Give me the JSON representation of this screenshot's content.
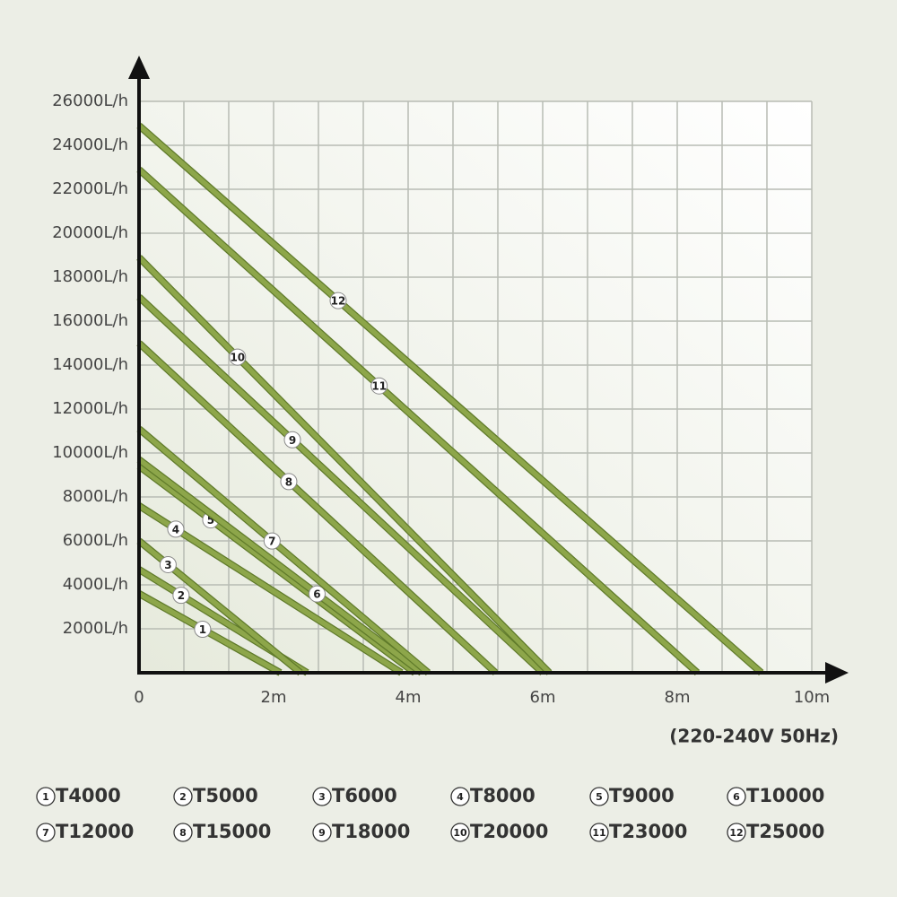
{
  "chart_data": {
    "type": "line",
    "subtitle": "(220-240V  50Hz)",
    "xlim": [
      0,
      10
    ],
    "xticks": [
      0,
      {
        "value": 2,
        "label": "2m"
      },
      {
        "value": 4,
        "label": "4m"
      },
      {
        "value": 6,
        "label": "6m"
      },
      {
        "value": 8,
        "label": "8m"
      },
      {
        "value": 10,
        "label": "10m"
      }
    ],
    "ylim": [
      0,
      26000
    ],
    "yticks": [
      {
        "value": 2000,
        "label": "2000L/h"
      },
      {
        "value": 4000,
        "label": "4000L/h"
      },
      {
        "value": 6000,
        "label": "6000L/h"
      },
      {
        "value": 8000,
        "label": "8000L/h"
      },
      {
        "value": 10000,
        "label": "10000L/h"
      },
      {
        "value": 12000,
        "label": "12000L/h"
      },
      {
        "value": 14000,
        "label": "14000L/h"
      },
      {
        "value": 16000,
        "label": "16000L/h"
      },
      {
        "value": 18000,
        "label": "18000L/h"
      },
      {
        "value": 20000,
        "label": "20000L/h"
      },
      {
        "value": 22000,
        "label": "22000L/h"
      },
      {
        "value": 24000,
        "label": "24000L/h"
      },
      {
        "value": 26000,
        "label": "26000L/h"
      }
    ],
    "grid": true,
    "series": [
      {
        "label": "1",
        "name": "T4000",
        "color": "#8da64a",
        "x": [
          0,
          2.1
        ],
        "values": [
          3600,
          0
        ]
      },
      {
        "label": "2",
        "name": "T5000",
        "color": "#8da64a",
        "x": [
          0,
          2.5
        ],
        "values": [
          4700,
          0
        ]
      },
      {
        "label": "3",
        "name": "T6000",
        "color": "#8da64a",
        "x": [
          0,
          2.4
        ],
        "values": [
          6000,
          0
        ]
      },
      {
        "label": "4",
        "name": "T8000",
        "color": "#8da64a",
        "x": [
          0,
          3.9
        ],
        "values": [
          7600,
          0
        ]
      },
      {
        "label": "5",
        "name": "T9000",
        "color": "#8da64a",
        "x": [
          0,
          4.1
        ],
        "values": [
          9400,
          0
        ]
      },
      {
        "label": "6",
        "name": "T10000",
        "color": "#8da64a",
        "x": [
          0,
          4.2
        ],
        "values": [
          9700,
          0
        ]
      },
      {
        "label": "7",
        "name": "T12000",
        "color": "#8da64a",
        "x": [
          0,
          4.3
        ],
        "values": [
          11100,
          0
        ]
      },
      {
        "label": "8",
        "name": "T15000",
        "color": "#8da64a",
        "x": [
          0,
          5.3
        ],
        "values": [
          15000,
          0
        ]
      },
      {
        "label": "9",
        "name": "T18000",
        "color": "#8da64a",
        "x": [
          0,
          6.0
        ],
        "values": [
          17100,
          0
        ]
      },
      {
        "label": "10",
        "name": "T20000",
        "color": "#8da64a",
        "x": [
          0,
          6.1
        ],
        "values": [
          18900,
          0
        ]
      },
      {
        "label": "11",
        "name": "T23000",
        "color": "#8da64a",
        "x": [
          0,
          8.3
        ],
        "values": [
          22900,
          0
        ]
      },
      {
        "label": "12",
        "name": "T25000",
        "color": "#8da64a",
        "x": [
          0,
          9.25
        ],
        "values": [
          24900,
          0
        ]
      }
    ]
  }
}
